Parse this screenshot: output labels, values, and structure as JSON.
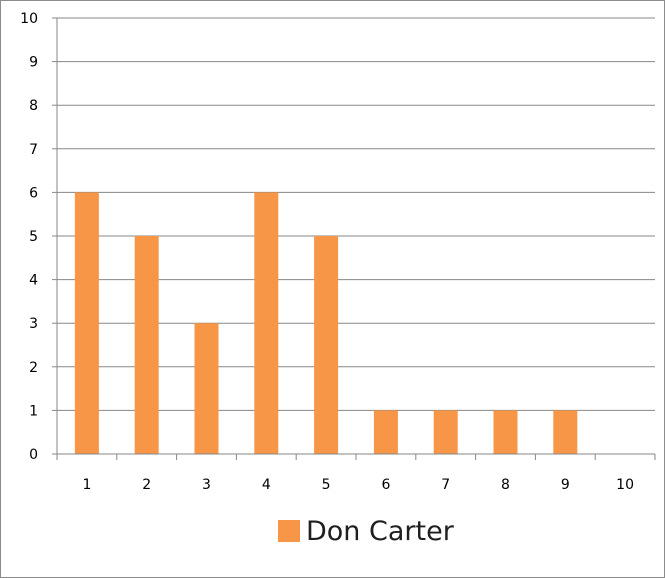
{
  "chart_data": {
    "type": "bar",
    "categories": [
      "1",
      "2",
      "3",
      "4",
      "5",
      "6",
      "7",
      "8",
      "9",
      "10"
    ],
    "series": [
      {
        "name": "Don Carter",
        "values": [
          6,
          5,
          3,
          6,
          5,
          1,
          1,
          1,
          1,
          0
        ],
        "color": "#f79646"
      }
    ],
    "ylim": [
      0,
      10
    ],
    "yticks": [
      "0",
      "1",
      "2",
      "3",
      "4",
      "5",
      "6",
      "7",
      "8",
      "9",
      "10"
    ],
    "title": "",
    "xlabel": "",
    "ylabel": "",
    "grid": true,
    "legend_position": "bottom"
  }
}
